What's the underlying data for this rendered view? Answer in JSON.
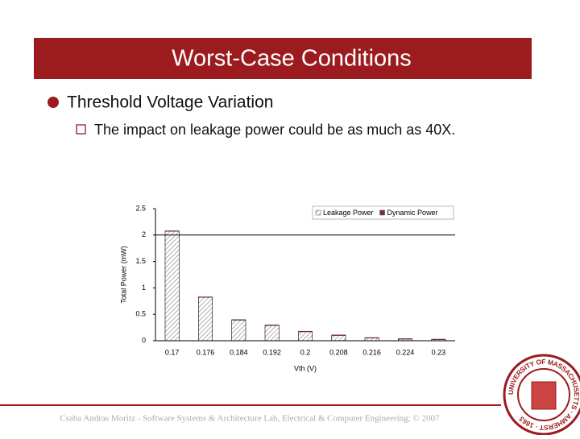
{
  "header": {
    "title": "Worst-Case Conditions"
  },
  "bullets": [
    {
      "text": "Threshold Voltage Variation",
      "sub": [
        "The impact on leakage power could be as much as 40X."
      ]
    }
  ],
  "chart_data": {
    "type": "stacked-bar",
    "x_label": "Vth (V)",
    "y_label": "Total Power (mW)",
    "categories": [
      "0.17",
      "0.176",
      "0.184",
      "0.192",
      "0.2",
      "0.208",
      "0.216",
      "0.224",
      "0.23"
    ],
    "series": [
      {
        "name": "Leakage Power",
        "color": "#8c8c8c",
        "values": [
          2.07,
          0.82,
          0.39,
          0.29,
          0.17,
          0.1,
          0.05,
          0.03,
          0.02
        ]
      },
      {
        "name": "Dynamic Power",
        "color": "#7a2a50",
        "values": [
          0.01,
          0.01,
          0.01,
          0.01,
          0.01,
          0.01,
          0.01,
          0.01,
          0.01
        ]
      }
    ],
    "ylim": [
      0,
      2.5
    ],
    "yticks": [
      0,
      0.5,
      1,
      1.5,
      2,
      2.5
    ],
    "grid": false,
    "legend": "top-right"
  },
  "footer": {
    "text": "Csaba Andras Moritz - Software Systems & Architecture Lab, Electrical & Computer Engineering; © 2007"
  },
  "seal": {
    "text": "UNIVERSITY OF MASSACHUSETTS · AMHERST · 1863"
  }
}
